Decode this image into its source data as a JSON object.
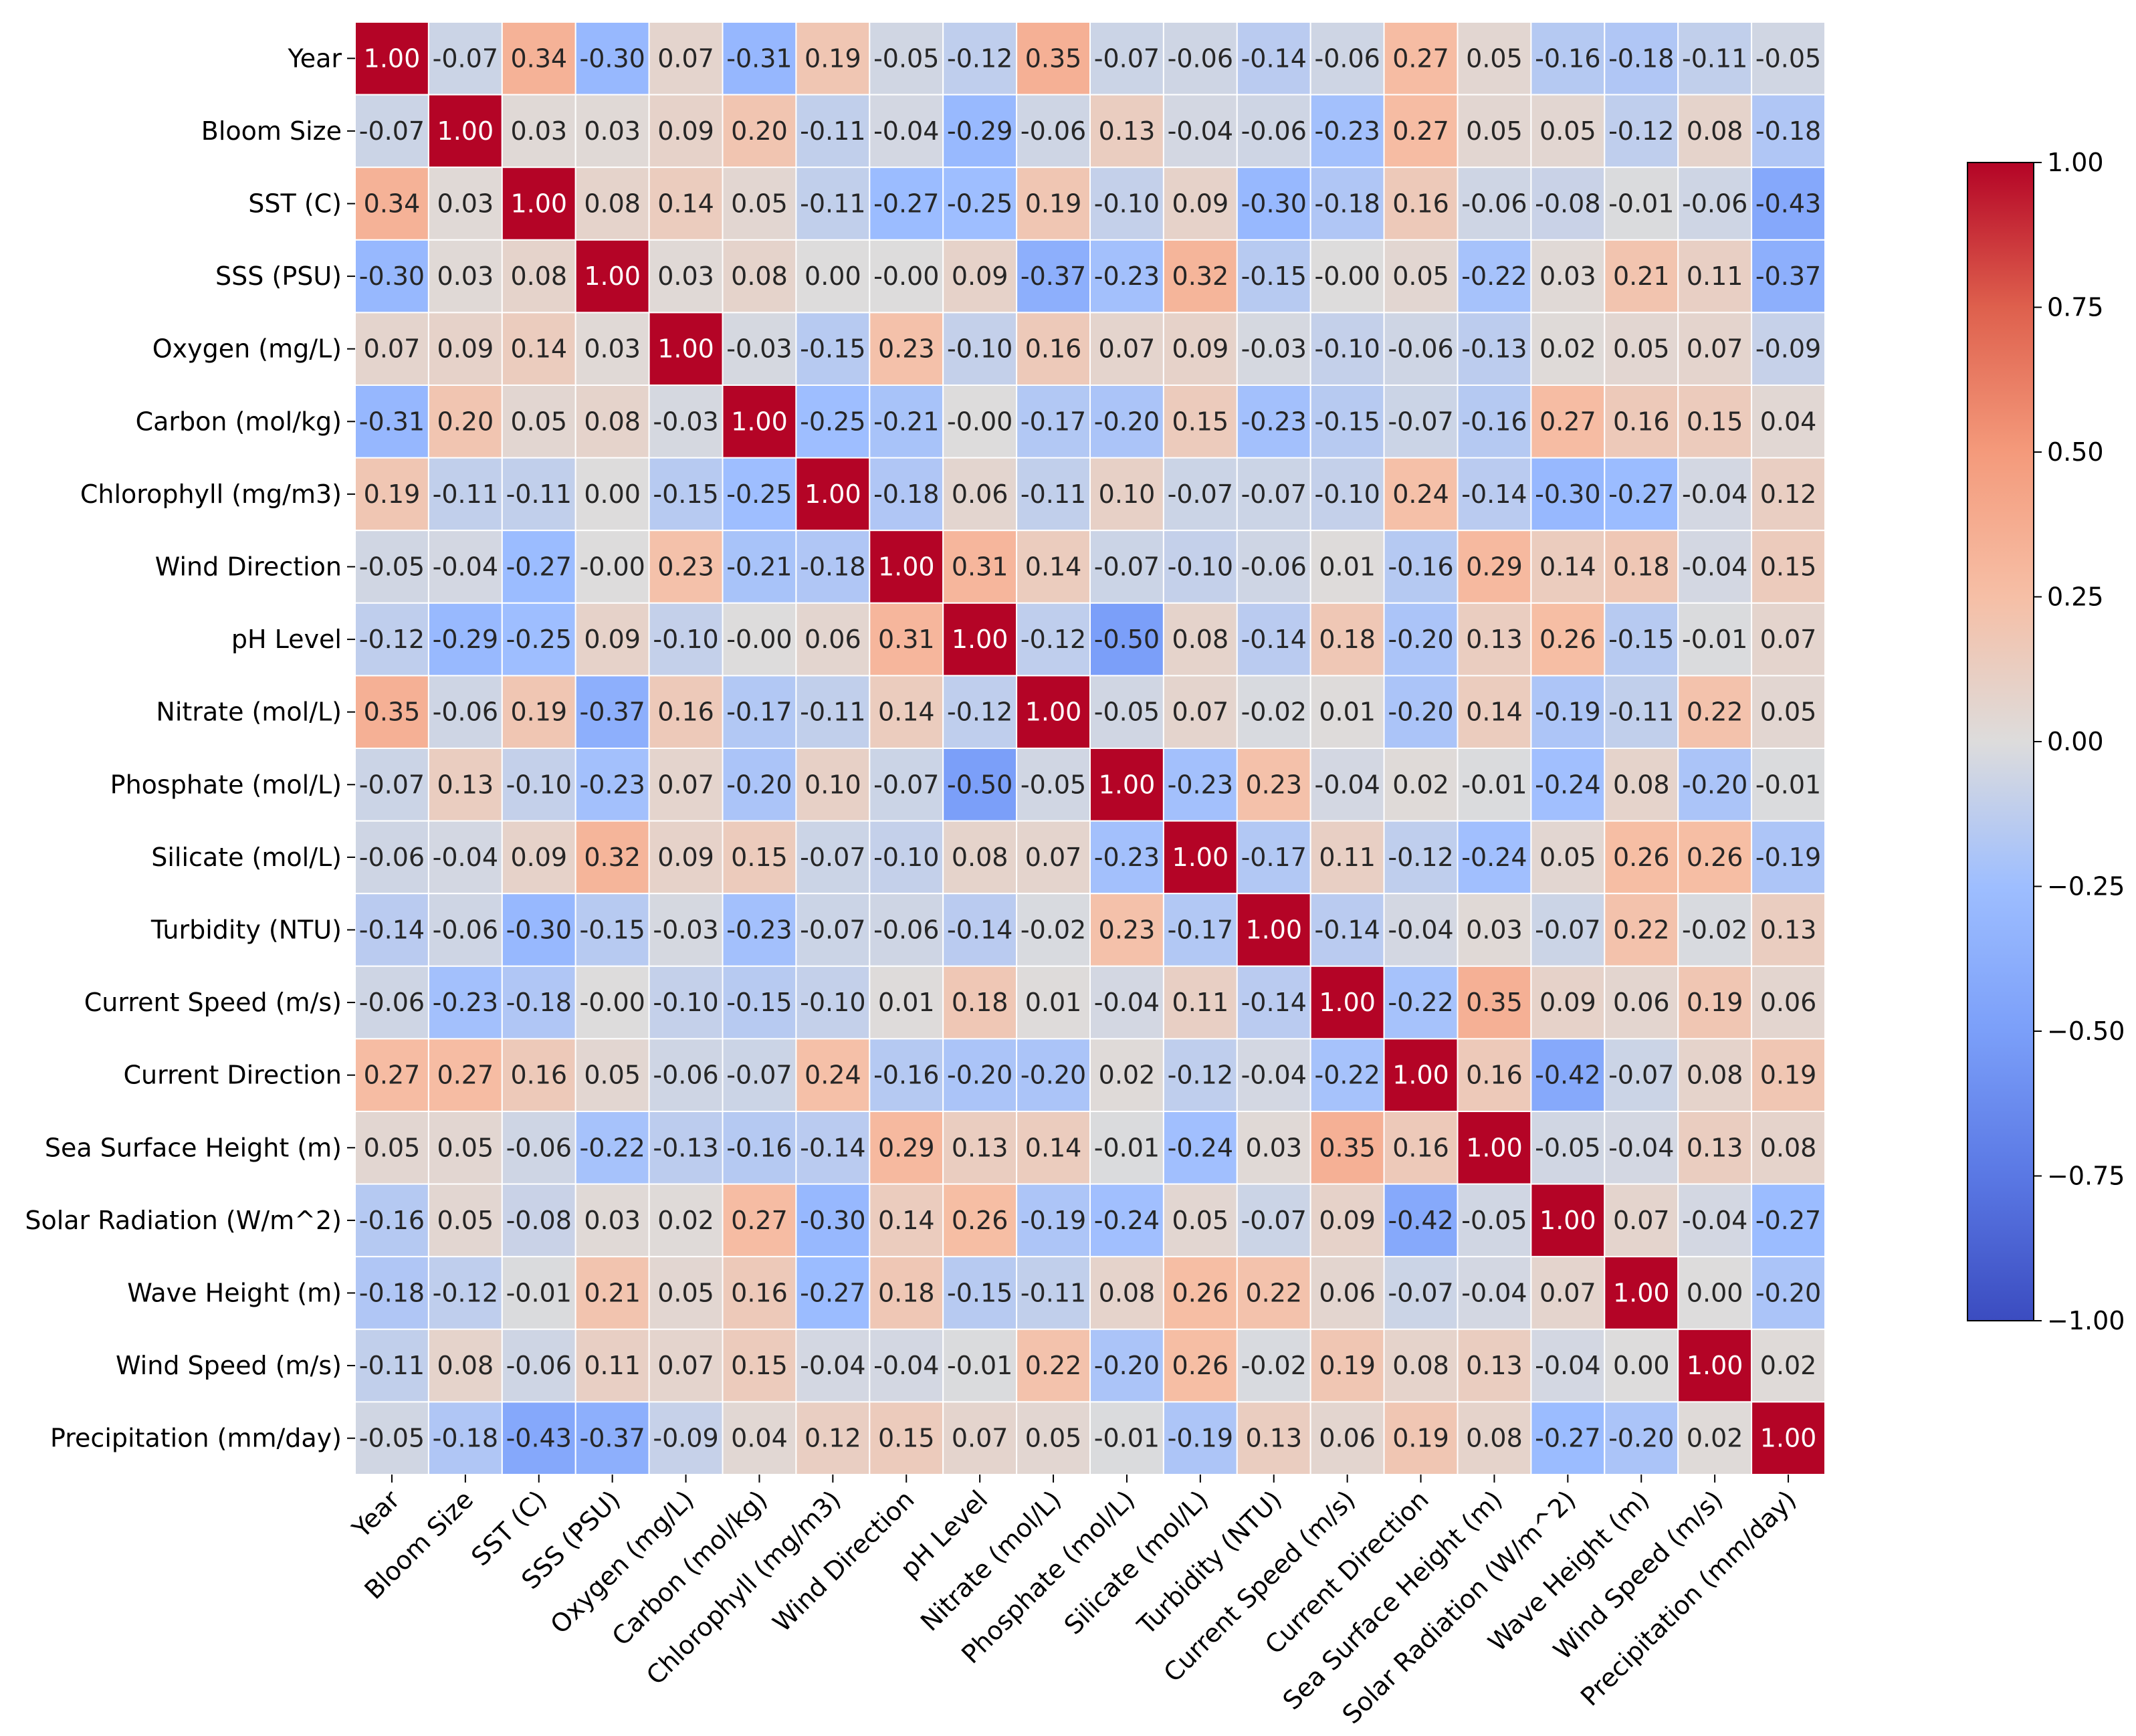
{
  "chart_data": {
    "type": "heatmap",
    "title": "",
    "xlabel": "",
    "ylabel": "",
    "colormap": "coolwarm",
    "value_range": [
      -1.0,
      1.0
    ],
    "colorbar_ticks": [
      "1.00",
      "0.75",
      "0.50",
      "0.25",
      "0.00",
      "−0.25",
      "−0.50",
      "−0.75",
      "−1.00"
    ],
    "colorbar_tick_values": [
      1.0,
      0.75,
      0.5,
      0.25,
      0.0,
      -0.25,
      -0.5,
      -0.75,
      -1.0
    ],
    "labels": [
      "Year",
      "Bloom Size",
      "SST (C)",
      "SSS (PSU)",
      "Oxygen (mg/L)",
      "Carbon (mol/kg)",
      "Chlorophyll (mg/m3)",
      "Wind Direction",
      "pH Level",
      "Nitrate (mol/L)",
      "Phosphate (mol/L)",
      "Silicate (mol/L)",
      "Turbidity (NTU)",
      "Current Speed (m/s)",
      "Current Direction",
      "Sea Surface Height (m)",
      "Solar Radiation (W/m^2)",
      "Wave Height (m)",
      "Wind Speed (m/s)",
      "Precipitation (mm/day)"
    ],
    "cell_labels": [
      [
        "1.00",
        "-0.07",
        "0.34",
        "-0.30",
        "0.07",
        "-0.31",
        "0.19",
        "-0.05",
        "-0.12",
        "0.35",
        "-0.07",
        "-0.06",
        "-0.14",
        "-0.06",
        "0.27",
        "0.05",
        "-0.16",
        "-0.18",
        "-0.11",
        "-0.05"
      ],
      [
        "-0.07",
        "1.00",
        "0.03",
        "0.03",
        "0.09",
        "0.20",
        "-0.11",
        "-0.04",
        "-0.29",
        "-0.06",
        "0.13",
        "-0.04",
        "-0.06",
        "-0.23",
        "0.27",
        "0.05",
        "0.05",
        "-0.12",
        "0.08",
        "-0.18"
      ],
      [
        "0.34",
        "0.03",
        "1.00",
        "0.08",
        "0.14",
        "0.05",
        "-0.11",
        "-0.27",
        "-0.25",
        "0.19",
        "-0.10",
        "0.09",
        "-0.30",
        "-0.18",
        "0.16",
        "-0.06",
        "-0.08",
        "-0.01",
        "-0.06",
        "-0.43"
      ],
      [
        "-0.30",
        "0.03",
        "0.08",
        "1.00",
        "0.03",
        "0.08",
        "0.00",
        "-0.00",
        "0.09",
        "-0.37",
        "-0.23",
        "0.32",
        "-0.15",
        "-0.00",
        "0.05",
        "-0.22",
        "0.03",
        "0.21",
        "0.11",
        "-0.37"
      ],
      [
        "0.07",
        "0.09",
        "0.14",
        "0.03",
        "1.00",
        "-0.03",
        "-0.15",
        "0.23",
        "-0.10",
        "0.16",
        "0.07",
        "0.09",
        "-0.03",
        "-0.10",
        "-0.06",
        "-0.13",
        "0.02",
        "0.05",
        "0.07",
        "-0.09"
      ],
      [
        "-0.31",
        "0.20",
        "0.05",
        "0.08",
        "-0.03",
        "1.00",
        "-0.25",
        "-0.21",
        "-0.00",
        "-0.17",
        "-0.20",
        "0.15",
        "-0.23",
        "-0.15",
        "-0.07",
        "-0.16",
        "0.27",
        "0.16",
        "0.15",
        "0.04"
      ],
      [
        "0.19",
        "-0.11",
        "-0.11",
        "0.00",
        "-0.15",
        "-0.25",
        "1.00",
        "-0.18",
        "0.06",
        "-0.11",
        "0.10",
        "-0.07",
        "-0.07",
        "-0.10",
        "0.24",
        "-0.14",
        "-0.30",
        "-0.27",
        "-0.04",
        "0.12"
      ],
      [
        "-0.05",
        "-0.04",
        "-0.27",
        "-0.00",
        "0.23",
        "-0.21",
        "-0.18",
        "1.00",
        "0.31",
        "0.14",
        "-0.07",
        "-0.10",
        "-0.06",
        "0.01",
        "-0.16",
        "0.29",
        "0.14",
        "0.18",
        "-0.04",
        "0.15"
      ],
      [
        "-0.12",
        "-0.29",
        "-0.25",
        "0.09",
        "-0.10",
        "-0.00",
        "0.06",
        "0.31",
        "1.00",
        "-0.12",
        "-0.50",
        "0.08",
        "-0.14",
        "0.18",
        "-0.20",
        "0.13",
        "0.26",
        "-0.15",
        "-0.01",
        "0.07"
      ],
      [
        "0.35",
        "-0.06",
        "0.19",
        "-0.37",
        "0.16",
        "-0.17",
        "-0.11",
        "0.14",
        "-0.12",
        "1.00",
        "-0.05",
        "0.07",
        "-0.02",
        "0.01",
        "-0.20",
        "0.14",
        "-0.19",
        "-0.11",
        "0.22",
        "0.05"
      ],
      [
        "-0.07",
        "0.13",
        "-0.10",
        "-0.23",
        "0.07",
        "-0.20",
        "0.10",
        "-0.07",
        "-0.50",
        "-0.05",
        "1.00",
        "-0.23",
        "0.23",
        "-0.04",
        "0.02",
        "-0.01",
        "-0.24",
        "0.08",
        "-0.20",
        "-0.01"
      ],
      [
        "-0.06",
        "-0.04",
        "0.09",
        "0.32",
        "0.09",
        "0.15",
        "-0.07",
        "-0.10",
        "0.08",
        "0.07",
        "-0.23",
        "1.00",
        "-0.17",
        "0.11",
        "-0.12",
        "-0.24",
        "0.05",
        "0.26",
        "0.26",
        "-0.19"
      ],
      [
        "-0.14",
        "-0.06",
        "-0.30",
        "-0.15",
        "-0.03",
        "-0.23",
        "-0.07",
        "-0.06",
        "-0.14",
        "-0.02",
        "0.23",
        "-0.17",
        "1.00",
        "-0.14",
        "-0.04",
        "0.03",
        "-0.07",
        "0.22",
        "-0.02",
        "0.13"
      ],
      [
        "-0.06",
        "-0.23",
        "-0.18",
        "-0.00",
        "-0.10",
        "-0.15",
        "-0.10",
        "0.01",
        "0.18",
        "0.01",
        "-0.04",
        "0.11",
        "-0.14",
        "1.00",
        "-0.22",
        "0.35",
        "0.09",
        "0.06",
        "0.19",
        "0.06"
      ],
      [
        "0.27",
        "0.27",
        "0.16",
        "0.05",
        "-0.06",
        "-0.07",
        "0.24",
        "-0.16",
        "-0.20",
        "-0.20",
        "0.02",
        "-0.12",
        "-0.04",
        "-0.22",
        "1.00",
        "0.16",
        "-0.42",
        "-0.07",
        "0.08",
        "0.19"
      ],
      [
        "0.05",
        "0.05",
        "-0.06",
        "-0.22",
        "-0.13",
        "-0.16",
        "-0.14",
        "0.29",
        "0.13",
        "0.14",
        "-0.01",
        "-0.24",
        "0.03",
        "0.35",
        "0.16",
        "1.00",
        "-0.05",
        "-0.04",
        "0.13",
        "0.08"
      ],
      [
        "-0.16",
        "0.05",
        "-0.08",
        "0.03",
        "0.02",
        "0.27",
        "-0.30",
        "0.14",
        "0.26",
        "-0.19",
        "-0.24",
        "0.05",
        "-0.07",
        "0.09",
        "-0.42",
        "-0.05",
        "1.00",
        "0.07",
        "-0.04",
        "-0.27"
      ],
      [
        "-0.18",
        "-0.12",
        "-0.01",
        "0.21",
        "0.05",
        "0.16",
        "-0.27",
        "0.18",
        "-0.15",
        "-0.11",
        "0.08",
        "0.26",
        "0.22",
        "0.06",
        "-0.07",
        "-0.04",
        "0.07",
        "1.00",
        "0.00",
        "-0.20"
      ],
      [
        "-0.11",
        "0.08",
        "-0.06",
        "0.11",
        "0.07",
        "0.15",
        "-0.04",
        "-0.04",
        "-0.01",
        "0.22",
        "-0.20",
        "0.26",
        "-0.02",
        "0.19",
        "0.08",
        "0.13",
        "-0.04",
        "0.00",
        "1.00",
        "0.02"
      ],
      [
        "-0.05",
        "-0.18",
        "-0.43",
        "-0.37",
        "-0.09",
        "0.04",
        "0.12",
        "0.15",
        "0.07",
        "0.05",
        "-0.01",
        "-0.19",
        "0.13",
        "0.06",
        "0.19",
        "0.08",
        "-0.27",
        "-0.20",
        "0.02",
        "1.00"
      ]
    ]
  }
}
